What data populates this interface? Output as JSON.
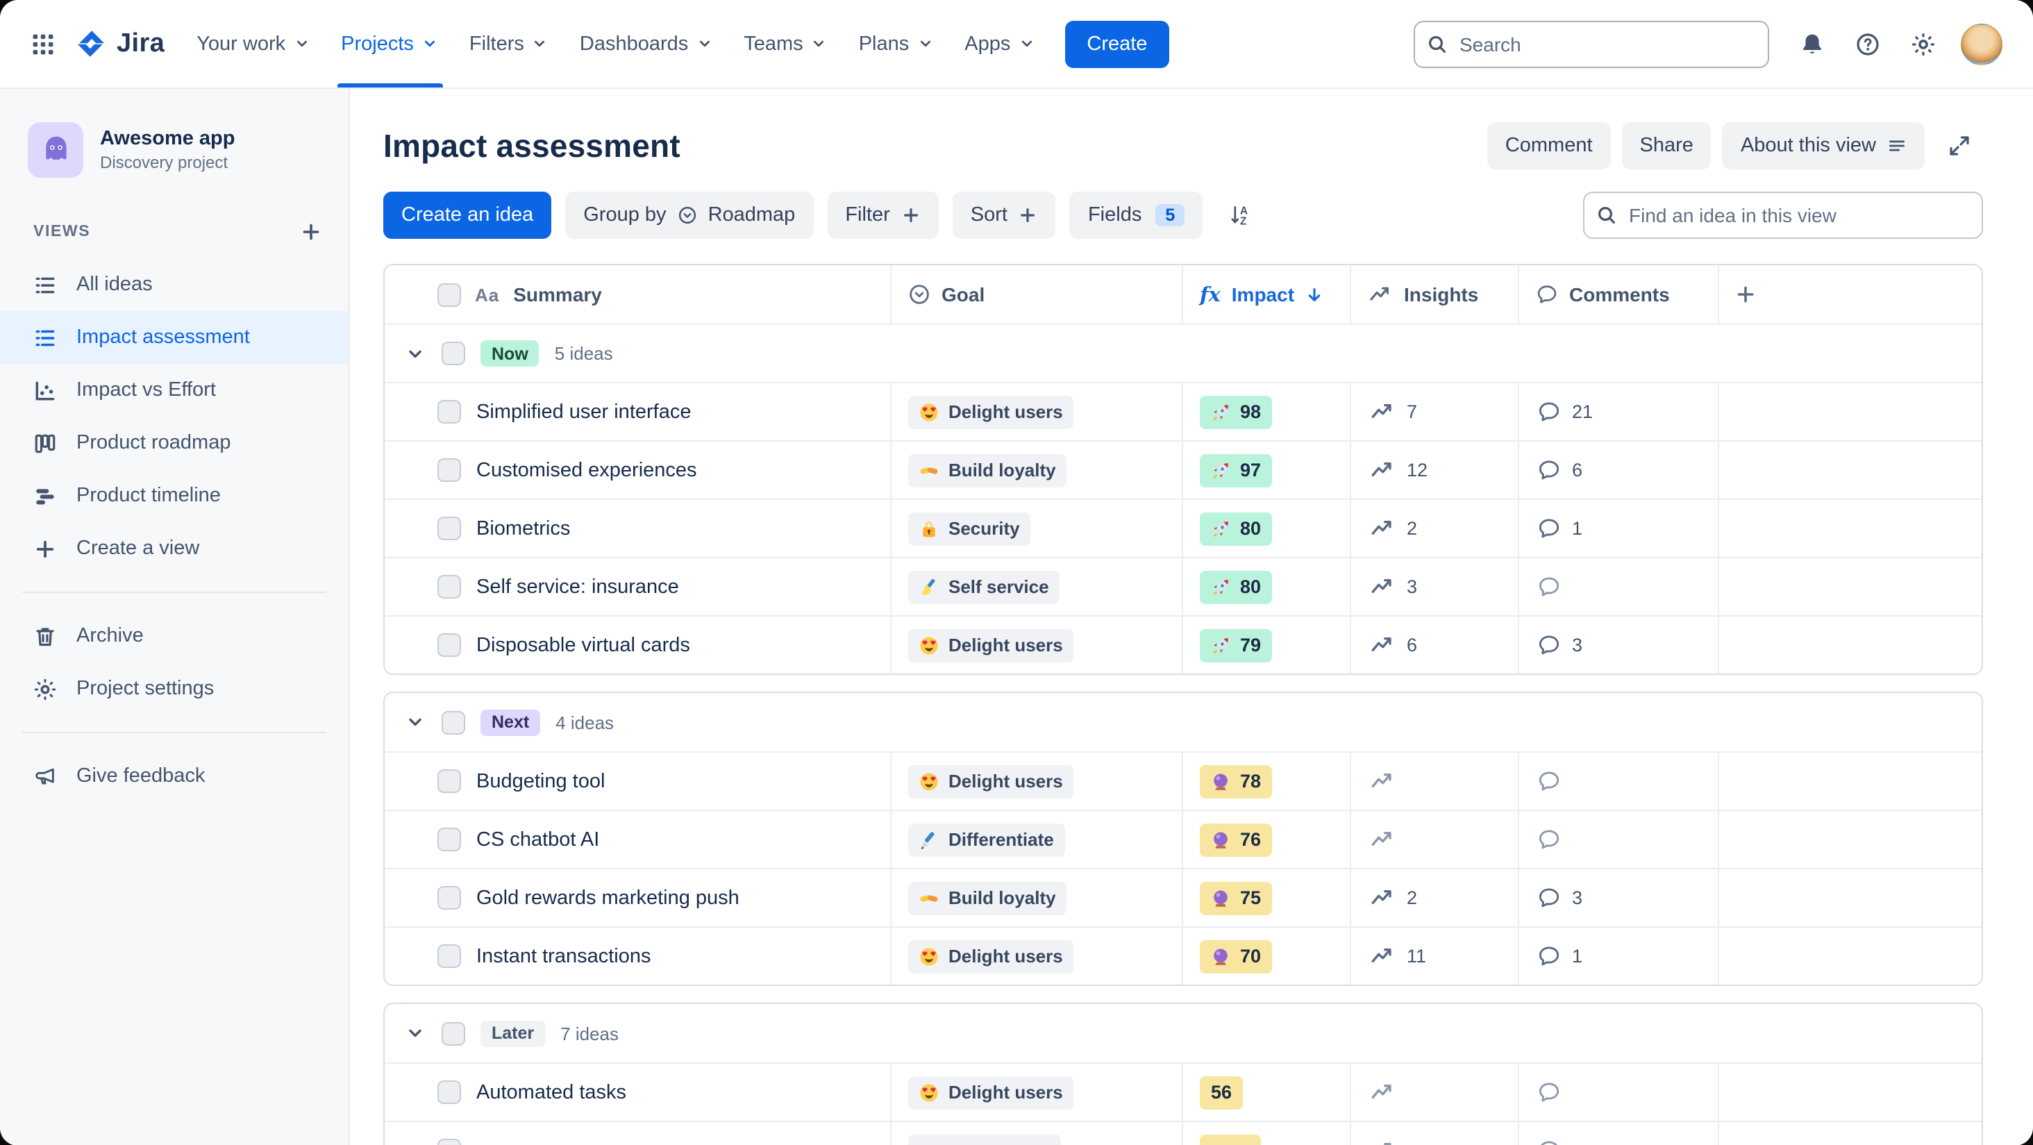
{
  "topbar": {
    "logo_text": "Jira",
    "nav_items": [
      {
        "label": "Your work"
      },
      {
        "label": "Projects",
        "active": true
      },
      {
        "label": "Filters"
      },
      {
        "label": "Dashboards"
      },
      {
        "label": "Teams"
      },
      {
        "label": "Plans"
      },
      {
        "label": "Apps"
      }
    ],
    "create_button": "Create",
    "search_placeholder": "Search"
  },
  "sidebar": {
    "project_name": "Awesome app",
    "project_type": "Discovery project",
    "views_label": "VIEWS",
    "sections": [
      {
        "items": [
          {
            "label": "All ideas",
            "icon": "list"
          },
          {
            "label": "Impact assessment",
            "icon": "list",
            "active": true
          },
          {
            "label": "Impact vs Effort",
            "icon": "scatter"
          },
          {
            "label": "Product roadmap",
            "icon": "board"
          },
          {
            "label": "Product timeline",
            "icon": "timeline"
          },
          {
            "label": "Create a view",
            "icon": "plus"
          }
        ]
      },
      {
        "items": [
          {
            "label": "Archive",
            "icon": "trash"
          },
          {
            "label": "Project settings",
            "icon": "gear"
          }
        ]
      },
      {
        "items": [
          {
            "label": "Give feedback",
            "icon": "megaphone"
          }
        ]
      }
    ]
  },
  "main": {
    "title": "Impact assessment",
    "actions": {
      "comment": "Comment",
      "share": "Share",
      "about": "About this view"
    },
    "toolbar": {
      "create_idea": "Create an idea",
      "group_by_label": "Group by",
      "group_by_value": "Roadmap",
      "filter": "Filter",
      "sort": "Sort",
      "fields": "Fields",
      "fields_count": "5",
      "find_placeholder": "Find an idea in this view"
    }
  },
  "colors": {
    "accent": "#0C66E4",
    "selected_view_bg": "#E9F2FF",
    "impact_green": "#BAF3DB",
    "impact_yellow": "#F8E6A0"
  },
  "table": {
    "columns": {
      "summary": "Summary",
      "goal": "Goal",
      "impact": "Impact",
      "insights": "Insights",
      "comments": "Comments"
    },
    "header_icons": {
      "summary_type": "Aa",
      "impact_type": "fx"
    },
    "groups": [
      {
        "name": "Now",
        "count": "5 ideas",
        "badge_bg": "#BAF3DB",
        "badge_fg": "#164B35",
        "rows": [
          {
            "summary": "Simplified user interface",
            "goal": {
              "icon": "heart-eyes",
              "label": "Delight users"
            },
            "impact": {
              "icon": "rocket",
              "value": "98",
              "tone": "green"
            },
            "insights": "7",
            "comments": "21"
          },
          {
            "summary": "Customised experiences",
            "goal": {
              "icon": "handshake",
              "label": "Build loyalty"
            },
            "impact": {
              "icon": "rocket",
              "value": "97",
              "tone": "green"
            },
            "insights": "12",
            "comments": "6"
          },
          {
            "summary": "Biometrics",
            "goal": {
              "icon": "lock",
              "label": "Security"
            },
            "impact": {
              "icon": "rocket",
              "value": "80",
              "tone": "green"
            },
            "insights": "2",
            "comments": "1"
          },
          {
            "summary": "Self service: insurance",
            "goal": {
              "icon": "writing-hand",
              "label": "Self service"
            },
            "impact": {
              "icon": "rocket",
              "value": "80",
              "tone": "green"
            },
            "insights": "3",
            "comments": null
          },
          {
            "summary": "Disposable virtual cards",
            "goal": {
              "icon": "heart-eyes",
              "label": "Delight users"
            },
            "impact": {
              "icon": "rocket",
              "value": "79",
              "tone": "green"
            },
            "insights": "6",
            "comments": "3"
          }
        ]
      },
      {
        "name": "Next",
        "count": "4 ideas",
        "badge_bg": "#DFD8FD",
        "badge_fg": "#352C63",
        "rows": [
          {
            "summary": "Budgeting tool",
            "goal": {
              "icon": "heart-eyes",
              "label": "Delight users"
            },
            "impact": {
              "icon": "crystal-ball",
              "value": "78",
              "tone": "yellow"
            },
            "insights": null,
            "comments": null
          },
          {
            "summary": "CS chatbot AI",
            "goal": {
              "icon": "pen",
              "label": "Differentiate"
            },
            "impact": {
              "icon": "crystal-ball",
              "value": "76",
              "tone": "yellow"
            },
            "insights": null,
            "comments": null
          },
          {
            "summary": "Gold rewards marketing push",
            "goal": {
              "icon": "handshake",
              "label": "Build loyalty"
            },
            "impact": {
              "icon": "crystal-ball",
              "value": "75",
              "tone": "yellow"
            },
            "insights": "2",
            "comments": "3"
          },
          {
            "summary": "Instant transactions",
            "goal": {
              "icon": "heart-eyes",
              "label": "Delight users"
            },
            "impact": {
              "icon": "crystal-ball",
              "value": "70",
              "tone": "yellow"
            },
            "insights": "11",
            "comments": "1"
          }
        ]
      },
      {
        "name": "Later",
        "count": "7 ideas",
        "badge_bg": "#F1F2F4",
        "badge_fg": "#44546F",
        "rows": [
          {
            "summary": "Automated tasks",
            "goal": {
              "icon": "heart-eyes",
              "label": "Delight users"
            },
            "impact": {
              "icon": "",
              "value": "56",
              "tone": "yellow"
            },
            "insights": null,
            "comments": null
          },
          {
            "summary": "",
            "partial": true,
            "goal": {
              "icon": "",
              "label": ""
            },
            "impact": {
              "icon": "",
              "value": "",
              "tone": "yellow"
            },
            "insights": null,
            "comments": null
          }
        ]
      }
    ]
  }
}
